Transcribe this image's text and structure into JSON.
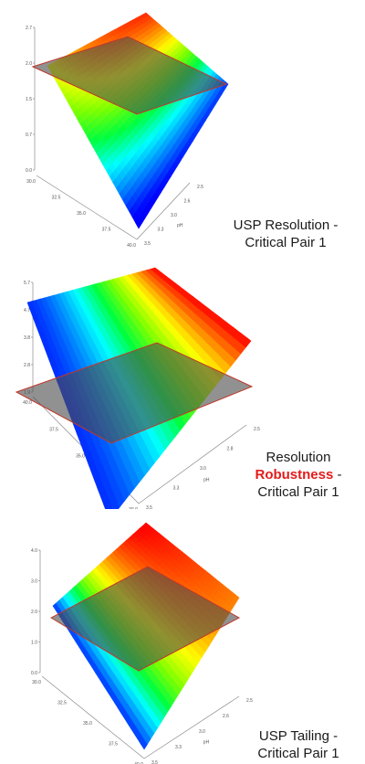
{
  "chart_data": [
    {
      "type": "surface",
      "x_axis_label": "",
      "y_axis_label": "pH",
      "x_ticks": [
        "30.0",
        "32.5",
        "35.0",
        "37.5",
        "40.0"
      ],
      "y_ticks": [
        "2.5",
        "2.6",
        "3.0",
        "3.3",
        "3.5"
      ],
      "z_ticks": [
        "0.0",
        "0.7",
        "1.5",
        "2.0",
        "2.7"
      ],
      "threshold_plane": 2.0,
      "surface_z_range": [
        0.0,
        2.7
      ],
      "caption": [
        "USP Resolution -",
        "Critical Pair 1"
      ]
    },
    {
      "type": "surface",
      "x_axis_label": "",
      "y_axis_label": "pH",
      "x_ticks": [
        "40.0",
        "37.5",
        "35.0",
        "32.5",
        "30.0"
      ],
      "y_ticks": [
        "2.5",
        "2.8",
        "3.0",
        "3.3",
        "3.5"
      ],
      "z_ticks": [
        "1.9",
        "2.8",
        "3.8",
        "4.7",
        "5.7"
      ],
      "threshold_plane": 2.0,
      "surface_z_range": [
        1.9,
        5.7
      ],
      "caption_parts": {
        "line1": "Resolution",
        "highlight": "Robustness",
        "after_highlight": " -",
        "line3": "Critical Pair 1"
      }
    },
    {
      "type": "surface",
      "x_axis_label": "",
      "y_axis_label": "pH",
      "x_ticks": [
        "30.0",
        "32.5",
        "35.0",
        "37.5",
        "40.0"
      ],
      "y_ticks": [
        "2.5",
        "2.6",
        "3.0",
        "3.3",
        "3.5"
      ],
      "z_ticks": [
        "0.0",
        "1.0",
        "2.0",
        "3.0",
        "4.0"
      ],
      "threshold_plane": 2.0,
      "surface_z_range": [
        0.0,
        4.0
      ],
      "caption": [
        "USP Tailing -",
        "Critical Pair 1"
      ]
    }
  ],
  "colors": {
    "colormap": [
      "#0000ff",
      "#0080ff",
      "#00ffff",
      "#00ff40",
      "#80ff00",
      "#ffff00",
      "#ff8000",
      "#ff0000"
    ],
    "plane_fill": "#4d4d4d",
    "plane_edge": "#c0392b",
    "highlight_text": "#e41b1b"
  }
}
